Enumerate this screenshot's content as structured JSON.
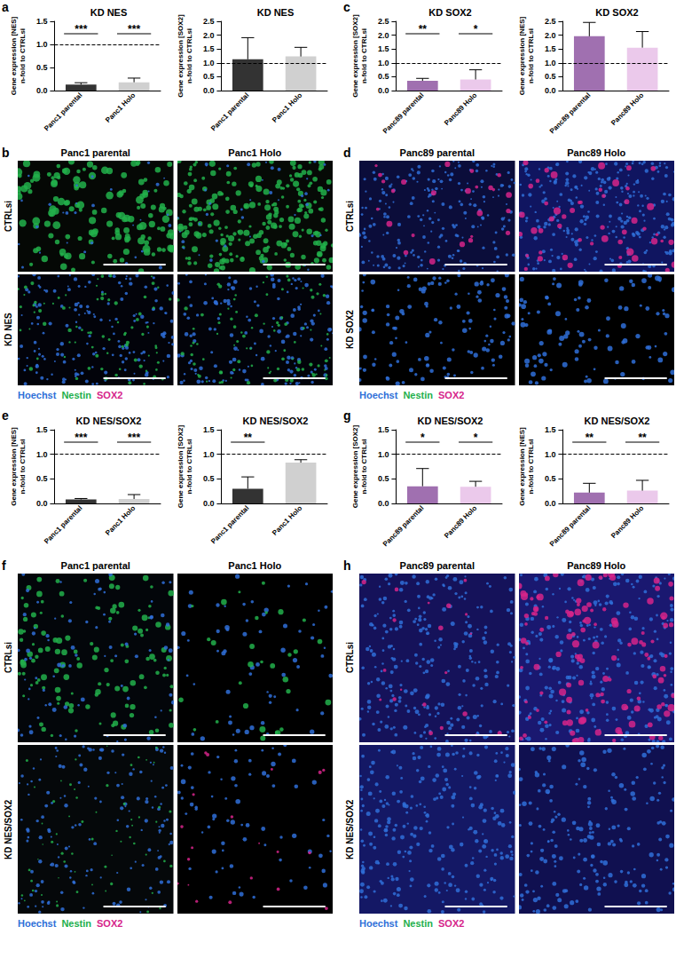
{
  "chart_data": [
    {
      "panel": "a",
      "type": "bar",
      "title": "KD NES",
      "ylabel": "Gene expression [NES]\nn-fold to CTRLsi",
      "categories": [
        "Panc1 parental",
        "Panc1 Holo"
      ],
      "values": [
        0.13,
        0.18
      ],
      "errors": [
        0.04,
        0.09
      ],
      "significance": [
        "***",
        "***"
      ],
      "colors": [
        "#333333",
        "#d0d0d0"
      ],
      "ylim": [
        0,
        1.5
      ],
      "yticks": [
        {
          "value": 0,
          "label": "0.0"
        },
        0.5,
        {
          "value": 1,
          "label": "1.0"
        },
        1.5
      ],
      "reference_line": 1
    },
    {
      "type": "bar",
      "title": "KD NES",
      "ylabel": "Gene expression [SOX2]\nn-fold to CTRLsi",
      "categories": [
        "Panc1 parental",
        "Panc1 Holo"
      ],
      "values": [
        1.13,
        1.23
      ],
      "errors": [
        0.78,
        0.33
      ],
      "colors": [
        "#333333",
        "#d0d0d0"
      ],
      "ylim": [
        0,
        2.5
      ],
      "yticks": [
        {
          "value": 0,
          "label": "0.0"
        },
        0.5,
        {
          "value": 1,
          "label": "1.0"
        },
        1.5,
        {
          "value": 2,
          "label": "2.0"
        },
        2.5
      ],
      "reference_line": 1
    },
    {
      "panel": "c",
      "type": "bar",
      "title": "KD SOX2",
      "ylabel": "Gene expression [SOX2]\nn-fold to CTRLsi",
      "categories": [
        "Panc89 parental",
        "Panc89 Holo"
      ],
      "values": [
        0.35,
        0.4
      ],
      "errors": [
        0.09,
        0.35
      ],
      "significance": [
        "**",
        "*"
      ],
      "colors": [
        "#a070b0",
        "#ebc9eb"
      ],
      "ylim": [
        0,
        2.5
      ],
      "yticks": [
        {
          "value": 0,
          "label": "0.0"
        },
        0.5,
        {
          "value": 1,
          "label": "1.0"
        },
        1.5,
        {
          "value": 2,
          "label": "2.0"
        },
        2.5
      ],
      "reference_line": 1
    },
    {
      "type": "bar",
      "title": "KD SOX2",
      "ylabel": "Gene expression [NES]\nn-fold to CTRLsi",
      "categories": [
        "Panc89 parental",
        "Panc89 Holo"
      ],
      "values": [
        1.96,
        1.55
      ],
      "errors": [
        0.5,
        0.58
      ],
      "colors": [
        "#a070b0",
        "#ebc9eb"
      ],
      "ylim": [
        0,
        2.5
      ],
      "yticks": [
        {
          "value": 0,
          "label": "0.0"
        },
        0.5,
        {
          "value": 1,
          "label": "1.0"
        },
        1.5,
        {
          "value": 2,
          "label": "2.0"
        },
        2.5
      ],
      "reference_line": 1
    },
    {
      "panel": "e",
      "type": "bar",
      "title": "KD NES/SOX2",
      "ylabel": "Gene expression [NES]\nn-fold to CTRLsi",
      "categories": [
        "Panc1 parental",
        "Panc1 Holo"
      ],
      "values": [
        0.08,
        0.09
      ],
      "errors": [
        0.02,
        0.09
      ],
      "significance": [
        "***",
        "***"
      ],
      "colors": [
        "#333333",
        "#d0d0d0"
      ],
      "ylim": [
        0,
        1.5
      ],
      "yticks": [
        {
          "value": 0,
          "label": "0.0"
        },
        0.5,
        {
          "value": 1,
          "label": "1.0"
        },
        1.5
      ],
      "reference_line": 1
    },
    {
      "type": "bar",
      "title": "KD NES/SOX2",
      "ylabel": "Gene expression [SOX2]\nn-fold to CTRLsi",
      "categories": [
        "Panc1 parental",
        "Panc1 Holo"
      ],
      "values": [
        0.3,
        0.83
      ],
      "errors": [
        0.24,
        0.06
      ],
      "significance": [
        "**",
        null
      ],
      "colors": [
        "#333333",
        "#d0d0d0"
      ],
      "ylim": [
        0,
        1.5
      ],
      "yticks": [
        {
          "value": 0,
          "label": "0.0"
        },
        0.5,
        {
          "value": 1,
          "label": "1.0"
        },
        1.5
      ],
      "reference_line": 1
    },
    {
      "panel": "g",
      "type": "bar",
      "title": "KD NES/SOX2",
      "ylabel": "Gene expression [SOX2]\nn-fold to CTRLsi",
      "categories": [
        "Panc89 parental",
        "Panc89 Holo"
      ],
      "values": [
        0.35,
        0.34
      ],
      "errors": [
        0.36,
        0.11
      ],
      "significance": [
        "*",
        "*"
      ],
      "colors": [
        "#a070b0",
        "#ebc9eb"
      ],
      "ylim": [
        0,
        1.5
      ],
      "yticks": [
        {
          "value": 0,
          "label": "0.0"
        },
        0.5,
        {
          "value": 1,
          "label": "1.0"
        },
        1.5
      ],
      "reference_line": 1
    },
    {
      "type": "bar",
      "title": "KD NES/SOX2",
      "ylabel": "Gene expression [NES]\nn-fold to CTRLsi",
      "categories": [
        "Panc89 parental",
        "Panc89 Holo"
      ],
      "values": [
        0.22,
        0.26
      ],
      "errors": [
        0.19,
        0.21
      ],
      "significance": [
        "**",
        "**"
      ],
      "colors": [
        "#a070b0",
        "#ebc9eb"
      ],
      "ylim": [
        0,
        1.5
      ],
      "yticks": [
        {
          "value": 0,
          "label": "0.0"
        },
        0.5,
        {
          "value": 1,
          "label": "1.0"
        },
        1.5
      ],
      "reference_line": 1
    }
  ],
  "image_panels": [
    {
      "panel": "b",
      "columns": [
        "Panc1 parental",
        "Panc1 Holo"
      ],
      "rows": [
        "CTRLsi",
        "KD NES"
      ],
      "stains": [
        {
          "name": "Hoechst",
          "color": "#2f6fd8"
        },
        {
          "name": "Nestin",
          "color": "#22b04b"
        },
        {
          "name": "SOX2",
          "color": "#d6248a"
        }
      ]
    },
    {
      "panel": "d",
      "columns": [
        "Panc89 parental",
        "Panc89 Holo"
      ],
      "rows": [
        "CTRLsi",
        "KD SOX2"
      ],
      "stains": [
        {
          "name": "Hoechst",
          "color": "#2f6fd8"
        },
        {
          "name": "Nestin",
          "color": "#22b04b"
        },
        {
          "name": "SOX2",
          "color": "#d6248a"
        }
      ]
    },
    {
      "panel": "f",
      "columns": [
        "Panc1 parental",
        "Panc1 Holo"
      ],
      "rows": [
        "CTRLsi",
        "KD NES/SOX2"
      ],
      "stains": [
        {
          "name": "Hoechst",
          "color": "#2f6fd8"
        },
        {
          "name": "Nestin",
          "color": "#22b04b"
        },
        {
          "name": "SOX2",
          "color": "#d6248a"
        }
      ]
    },
    {
      "panel": "h",
      "columns": [
        "Panc89 parental",
        "Panc89 Holo"
      ],
      "rows": [
        "CTRLsi",
        "KD NES/SOX2"
      ],
      "stains": [
        {
          "name": "Hoechst",
          "color": "#2f6fd8"
        },
        {
          "name": "Nestin",
          "color": "#22b04b"
        },
        {
          "name": "SOX2",
          "color": "#d6248a"
        }
      ]
    }
  ]
}
